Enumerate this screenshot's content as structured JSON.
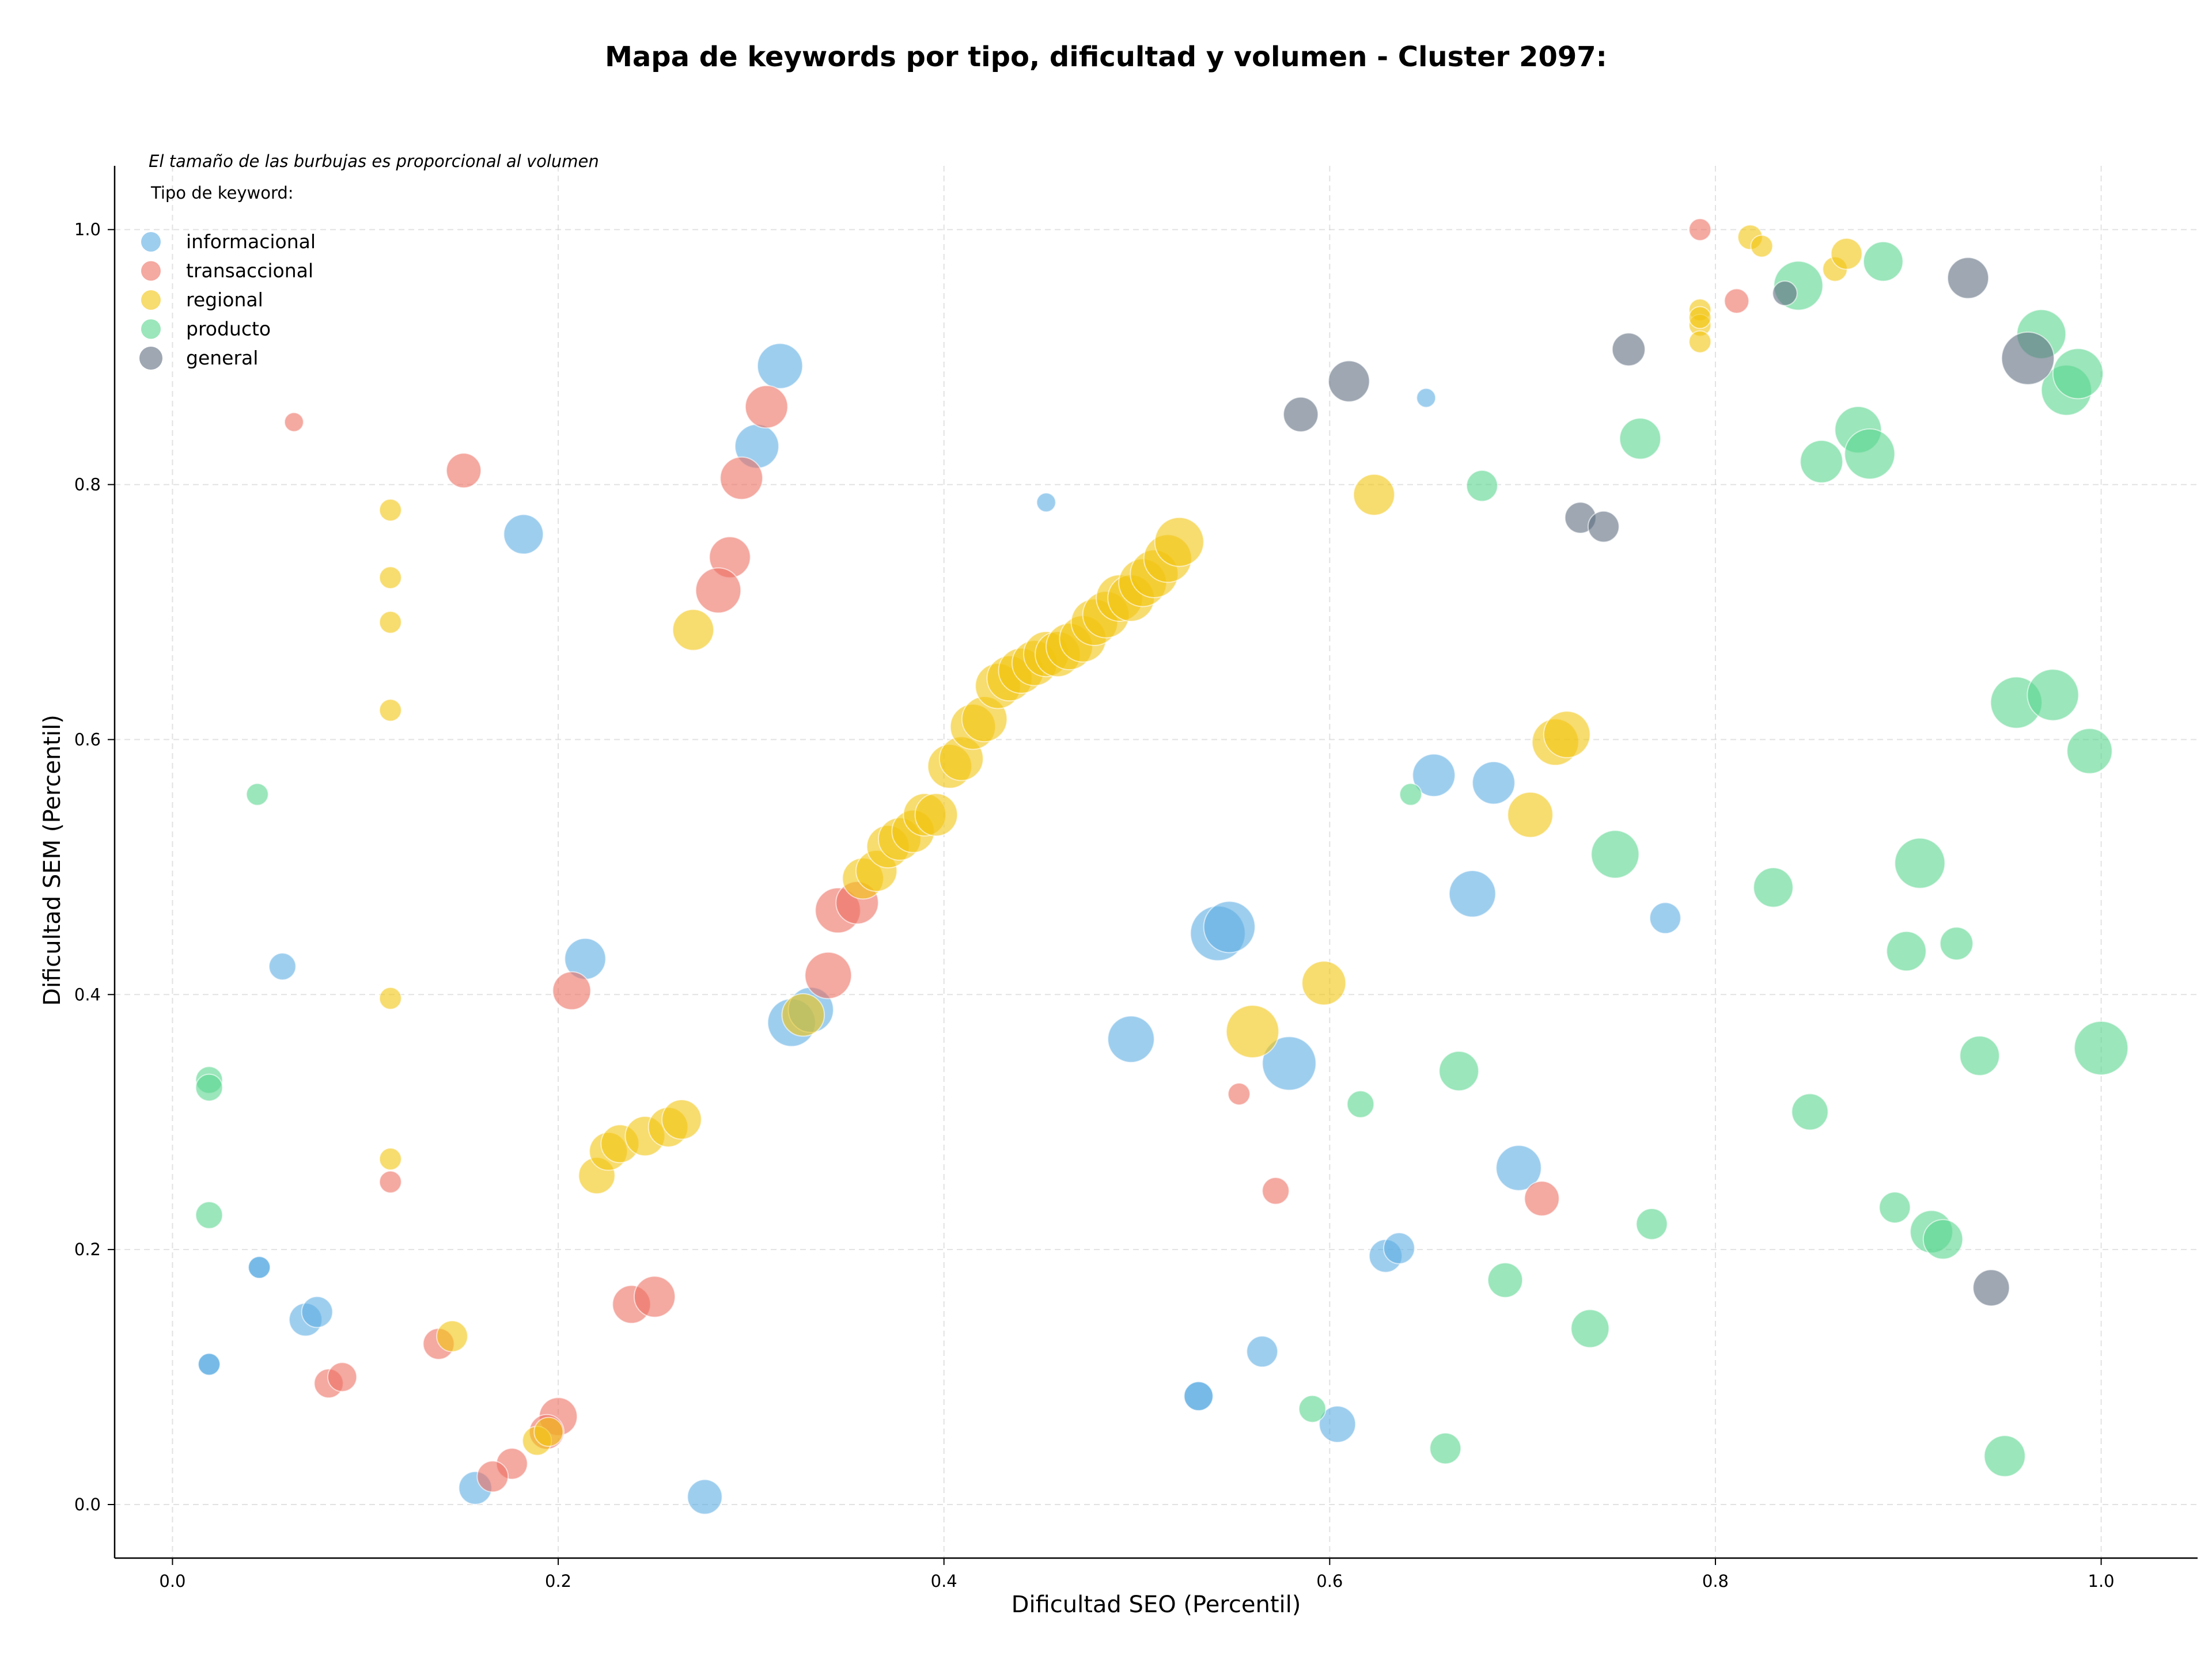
{
  "chart_data": {
    "type": "scatter",
    "title": "Mapa de keywords por tipo, dificultad y volumen - Cluster 2097:",
    "xlabel": "Dificultad SEO (Percentil)",
    "ylabel": "Dificultad SEM (Percentil)",
    "xlim": [
      -0.03,
      1.05
    ],
    "ylim": [
      -0.042,
      1.05
    ],
    "xticks": [
      0.0,
      0.2,
      0.4,
      0.6,
      0.8,
      1.0
    ],
    "yticks": [
      0.0,
      0.2,
      0.4,
      0.6,
      0.8,
      1.0
    ],
    "xtick_labels": [
      "0.0",
      "0.2",
      "0.4",
      "0.6",
      "0.8",
      "1.0"
    ],
    "ytick_labels": [
      "0.0",
      "0.2",
      "0.4",
      "0.6",
      "0.8",
      "1.0"
    ],
    "grid": true,
    "note": "El tamaño de las burbujas es proporcional al volumen",
    "legend_title": "Tipo de keyword:",
    "legend_position": "top-left",
    "series": [
      {
        "name": "informacional",
        "color": "#5DADE2",
        "points": [
          [
            0.315,
            0.893,
            1700
          ],
          [
            0.303,
            0.83,
            1600
          ],
          [
            0.182,
            0.761,
            1300
          ],
          [
            0.453,
            0.786,
            300
          ],
          [
            0.65,
            0.868,
            300
          ],
          [
            0.214,
            0.428,
            1400
          ],
          [
            0.057,
            0.422,
            600
          ],
          [
            0.321,
            0.378,
            1900
          ],
          [
            0.331,
            0.388,
            1700
          ],
          [
            0.542,
            0.448,
            2500
          ],
          [
            0.548,
            0.453,
            2200
          ],
          [
            0.579,
            0.346,
            2400
          ],
          [
            0.497,
            0.365,
            1800
          ],
          [
            0.654,
            0.572,
            1500
          ],
          [
            0.685,
            0.566,
            1500
          ],
          [
            0.674,
            0.479,
            1800
          ],
          [
            0.774,
            0.46,
            800
          ],
          [
            0.698,
            0.264,
            1700
          ],
          [
            0.629,
            0.195,
            900
          ],
          [
            0.636,
            0.201,
            800
          ],
          [
            0.565,
            0.12,
            800
          ],
          [
            0.604,
            0.063,
            1100
          ],
          [
            0.532,
            0.085,
            700
          ],
          [
            0.532,
            0.085,
            700
          ],
          [
            0.045,
            0.186,
            400
          ],
          [
            0.045,
            0.186,
            400
          ],
          [
            0.069,
            0.145,
            900
          ],
          [
            0.075,
            0.151,
            800
          ],
          [
            0.019,
            0.11,
            400
          ],
          [
            0.019,
            0.11,
            400
          ],
          [
            0.157,
            0.013,
            900
          ],
          [
            0.276,
            0.006,
            1000
          ]
        ]
      },
      {
        "name": "transaccional",
        "color": "#EC7063",
        "points": [
          [
            0.063,
            0.849,
            300
          ],
          [
            0.151,
            0.811,
            1000
          ],
          [
            0.308,
            0.861,
            1500
          ],
          [
            0.295,
            0.805,
            1500
          ],
          [
            0.289,
            0.743,
            1400
          ],
          [
            0.283,
            0.717,
            1700
          ],
          [
            0.345,
            0.466,
            1700
          ],
          [
            0.355,
            0.472,
            1500
          ],
          [
            0.34,
            0.415,
            1800
          ],
          [
            0.207,
            0.403,
            1200
          ],
          [
            0.113,
            0.253,
            400
          ],
          [
            0.238,
            0.157,
            1200
          ],
          [
            0.25,
            0.163,
            1400
          ],
          [
            0.138,
            0.126,
            800
          ],
          [
            0.081,
            0.095,
            700
          ],
          [
            0.088,
            0.1,
            700
          ],
          [
            0.2,
            0.069,
            1200
          ],
          [
            0.194,
            0.057,
            1000
          ],
          [
            0.176,
            0.032,
            800
          ],
          [
            0.166,
            0.022,
            800
          ],
          [
            0.553,
            0.322,
            400
          ],
          [
            0.572,
            0.246,
            600
          ],
          [
            0.71,
            0.24,
            1000
          ],
          [
            0.792,
            1.0,
            400
          ],
          [
            0.811,
            0.944,
            500
          ]
        ]
      },
      {
        "name": "regional",
        "color": "#F1C40F",
        "points": [
          [
            0.113,
            0.78,
            400
          ],
          [
            0.113,
            0.727,
            400
          ],
          [
            0.113,
            0.692,
            400
          ],
          [
            0.113,
            0.623,
            400
          ],
          [
            0.113,
            0.397,
            400
          ],
          [
            0.113,
            0.271,
            400
          ],
          [
            0.27,
            0.686,
            1400
          ],
          [
            0.22,
            0.258,
            1100
          ],
          [
            0.226,
            0.277,
            1200
          ],
          [
            0.232,
            0.283,
            1200
          ],
          [
            0.245,
            0.289,
            1300
          ],
          [
            0.257,
            0.296,
            1300
          ],
          [
            0.264,
            0.302,
            1300
          ],
          [
            0.145,
            0.132,
            800
          ],
          [
            0.189,
            0.05,
            700
          ],
          [
            0.195,
            0.057,
            700
          ],
          [
            0.327,
            0.384,
            1500
          ],
          [
            0.358,
            0.491,
            1400
          ],
          [
            0.365,
            0.497,
            1400
          ],
          [
            0.371,
            0.516,
            1500
          ],
          [
            0.377,
            0.522,
            1500
          ],
          [
            0.384,
            0.528,
            1500
          ],
          [
            0.39,
            0.541,
            1500
          ],
          [
            0.396,
            0.541,
            1500
          ],
          [
            0.403,
            0.579,
            1600
          ],
          [
            0.409,
            0.585,
            1600
          ],
          [
            0.415,
            0.61,
            1700
          ],
          [
            0.421,
            0.616,
            1700
          ],
          [
            0.428,
            0.642,
            1700
          ],
          [
            0.434,
            0.648,
            1700
          ],
          [
            0.44,
            0.654,
            1700
          ],
          [
            0.447,
            0.66,
            1700
          ],
          [
            0.453,
            0.667,
            1700
          ],
          [
            0.459,
            0.667,
            1700
          ],
          [
            0.465,
            0.673,
            1800
          ],
          [
            0.472,
            0.679,
            1800
          ],
          [
            0.478,
            0.692,
            1800
          ],
          [
            0.484,
            0.698,
            1800
          ],
          [
            0.491,
            0.711,
            1800
          ],
          [
            0.497,
            0.711,
            1800
          ],
          [
            0.503,
            0.723,
            1900
          ],
          [
            0.509,
            0.73,
            1900
          ],
          [
            0.516,
            0.742,
            1900
          ],
          [
            0.522,
            0.755,
            2000
          ],
          [
            0.56,
            0.371,
            2300
          ],
          [
            0.597,
            0.409,
            1600
          ],
          [
            0.623,
            0.792,
            1400
          ],
          [
            0.704,
            0.541,
            1700
          ],
          [
            0.717,
            0.598,
            1800
          ],
          [
            0.723,
            0.604,
            1800
          ],
          [
            0.792,
            0.937,
            400
          ],
          [
            0.792,
            0.925,
            400
          ],
          [
            0.792,
            0.931,
            400
          ],
          [
            0.792,
            0.912,
            400
          ],
          [
            0.818,
            0.994,
            500
          ],
          [
            0.824,
            0.987,
            400
          ],
          [
            0.862,
            0.969,
            500
          ],
          [
            0.868,
            0.981,
            800
          ]
        ]
      },
      {
        "name": "producto",
        "color": "#58D68D",
        "points": [
          [
            0.044,
            0.557,
            400
          ],
          [
            0.019,
            0.333,
            600
          ],
          [
            0.019,
            0.327,
            600
          ],
          [
            0.019,
            0.227,
            600
          ],
          [
            0.642,
            0.557,
            400
          ],
          [
            0.679,
            0.799,
            800
          ],
          [
            0.761,
            0.836,
            1400
          ],
          [
            0.843,
            0.956,
            2000
          ],
          [
            0.887,
            0.975,
            1300
          ],
          [
            0.855,
            0.818,
            1500
          ],
          [
            0.874,
            0.843,
            1800
          ],
          [
            0.88,
            0.824,
            2100
          ],
          [
            0.969,
            0.918,
            2000
          ],
          [
            0.982,
            0.874,
            2100
          ],
          [
            0.988,
            0.887,
            2100
          ],
          [
            0.956,
            0.629,
            2200
          ],
          [
            0.975,
            0.635,
            2200
          ],
          [
            0.994,
            0.591,
            1700
          ],
          [
            0.748,
            0.51,
            1900
          ],
          [
            0.83,
            0.484,
            1300
          ],
          [
            0.906,
            0.503,
            2100
          ],
          [
            0.899,
            0.434,
            1300
          ],
          [
            0.925,
            0.44,
            900
          ],
          [
            0.937,
            0.352,
            1300
          ],
          [
            1.0,
            0.358,
            2400
          ],
          [
            0.849,
            0.308,
            1100
          ],
          [
            0.616,
            0.314,
            600
          ],
          [
            0.667,
            0.34,
            1300
          ],
          [
            0.767,
            0.22,
            800
          ],
          [
            0.691,
            0.176,
            1000
          ],
          [
            0.735,
            0.138,
            1200
          ],
          [
            0.893,
            0.233,
            800
          ],
          [
            0.912,
            0.214,
            1500
          ],
          [
            0.918,
            0.208,
            1300
          ],
          [
            0.95,
            0.038,
            1400
          ],
          [
            0.591,
            0.075,
            600
          ],
          [
            0.66,
            0.044,
            800
          ]
        ]
      },
      {
        "name": "general",
        "color": "#5D6D7E",
        "points": [
          [
            0.585,
            0.855,
            1000
          ],
          [
            0.61,
            0.881,
            1400
          ],
          [
            0.755,
            0.906,
            900
          ],
          [
            0.73,
            0.774,
            800
          ],
          [
            0.742,
            0.767,
            800
          ],
          [
            0.836,
            0.95,
            500
          ],
          [
            0.931,
            0.962,
            1400
          ],
          [
            0.962,
            0.899,
            2300
          ],
          [
            0.943,
            0.17,
            1100
          ]
        ]
      }
    ]
  }
}
